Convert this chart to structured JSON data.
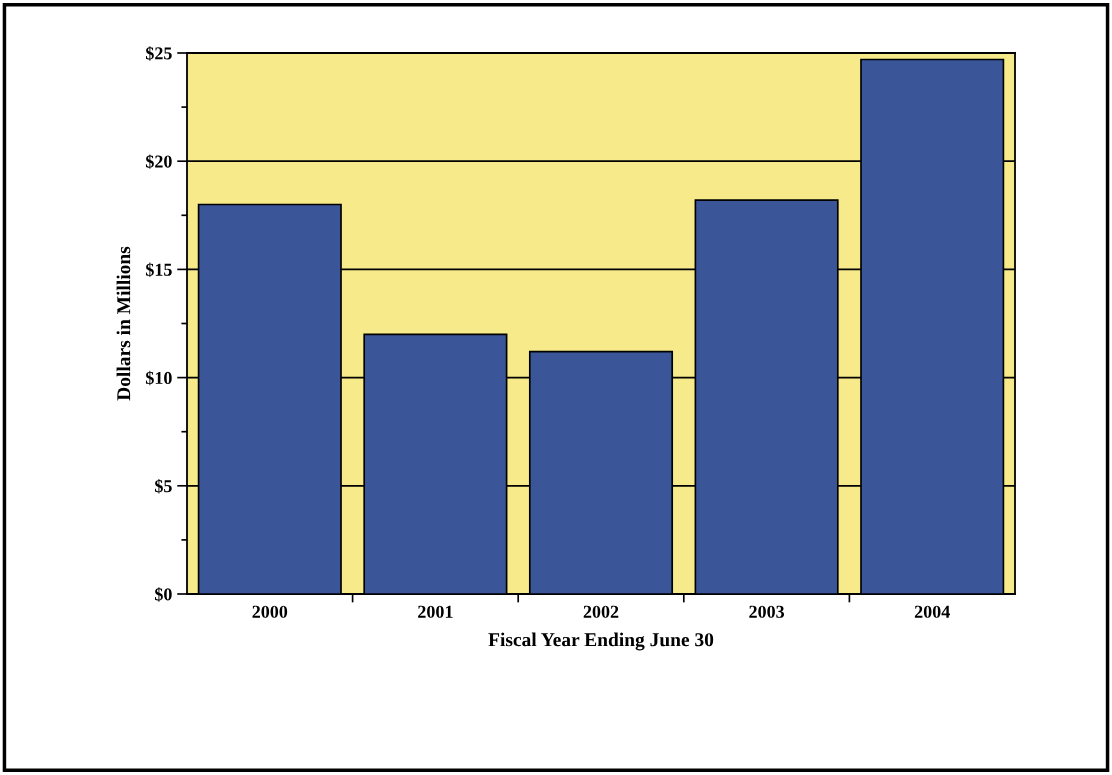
{
  "chart_data": {
    "type": "bar",
    "xlabel": "Fiscal Year Ending June 30",
    "ylabel": "Dollars in Millions",
    "categories": [
      "2000",
      "2001",
      "2002",
      "2003",
      "2004"
    ],
    "values": [
      18.0,
      12.0,
      11.2,
      18.2,
      24.7
    ],
    "color": "#3a5699",
    "ylim": [
      0,
      25
    ],
    "yticks": [
      {
        "value": 0,
        "label": "$0"
      },
      {
        "value": 2.5,
        "label": null
      },
      {
        "value": 5,
        "label": "$5"
      },
      {
        "value": 7.5,
        "label": null
      },
      {
        "value": 10,
        "label": "$10"
      },
      {
        "value": 12.5,
        "label": null
      },
      {
        "value": 15,
        "label": "$15"
      },
      {
        "value": 17.5,
        "label": null
      },
      {
        "value": 20,
        "label": "$20"
      },
      {
        "value": 22.5,
        "label": null
      },
      {
        "value": 25,
        "label": "$25"
      }
    ],
    "bands": [
      {
        "axis": "y",
        "from": 0,
        "to": 25,
        "color": "#f6ea8a"
      }
    ],
    "grid": "y",
    "legend": false
  }
}
